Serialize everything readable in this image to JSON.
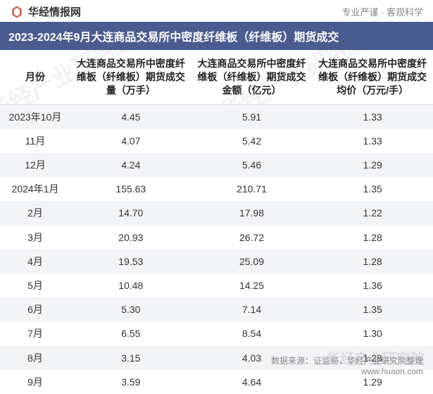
{
  "header": {
    "site_name": "华经情报网",
    "tagline": "专业严谨 · 客观科学"
  },
  "title": "2023-2024年9月大连商品交易所中密度纤维板（纤维板）期货成交",
  "watermark_text": "华经产业研究院",
  "corner_watermark": "华经产业研究院",
  "table": {
    "columns": [
      "月份",
      "大连商品交易所中密度纤维板（纤维板）期货成交量（万手）",
      "大连商品交易所中密度纤维板（纤维板）期货成交金额（亿元）",
      "大连商品交易所中密度纤维板（纤维板）期货成交均价（万元/手）"
    ],
    "rows": [
      [
        "2023年10月",
        "4.45",
        "5.91",
        "1.33"
      ],
      [
        "11月",
        "4.07",
        "5.42",
        "1.33"
      ],
      [
        "12月",
        "4.24",
        "5.46",
        "1.29"
      ],
      [
        "2024年1月",
        "155.63",
        "210.71",
        "1.35"
      ],
      [
        "2月",
        "14.70",
        "17.98",
        "1.22"
      ],
      [
        "3月",
        "20.93",
        "26.72",
        "1.28"
      ],
      [
        "4月",
        "19.53",
        "25.09",
        "1.28"
      ],
      [
        "5月",
        "10.48",
        "14.25",
        "1.36"
      ],
      [
        "6月",
        "5.30",
        "7.14",
        "1.35"
      ],
      [
        "7月",
        "6.55",
        "8.54",
        "1.30"
      ],
      [
        "8月",
        "3.15",
        "4.03",
        "1.28"
      ],
      [
        "9月",
        "3.59",
        "4.64",
        "1.29"
      ]
    ]
  },
  "footer": {
    "source": "数据来源：证监局，华经产业研究院整理",
    "url": "www.huaon.com"
  },
  "colors": {
    "title_bg": "#4a5b8f",
    "title_text": "#ffffff",
    "row_stripe": "#f3f4f8",
    "text": "#333333",
    "muted": "#888888",
    "watermark": "rgba(150,150,160,0.12)"
  }
}
